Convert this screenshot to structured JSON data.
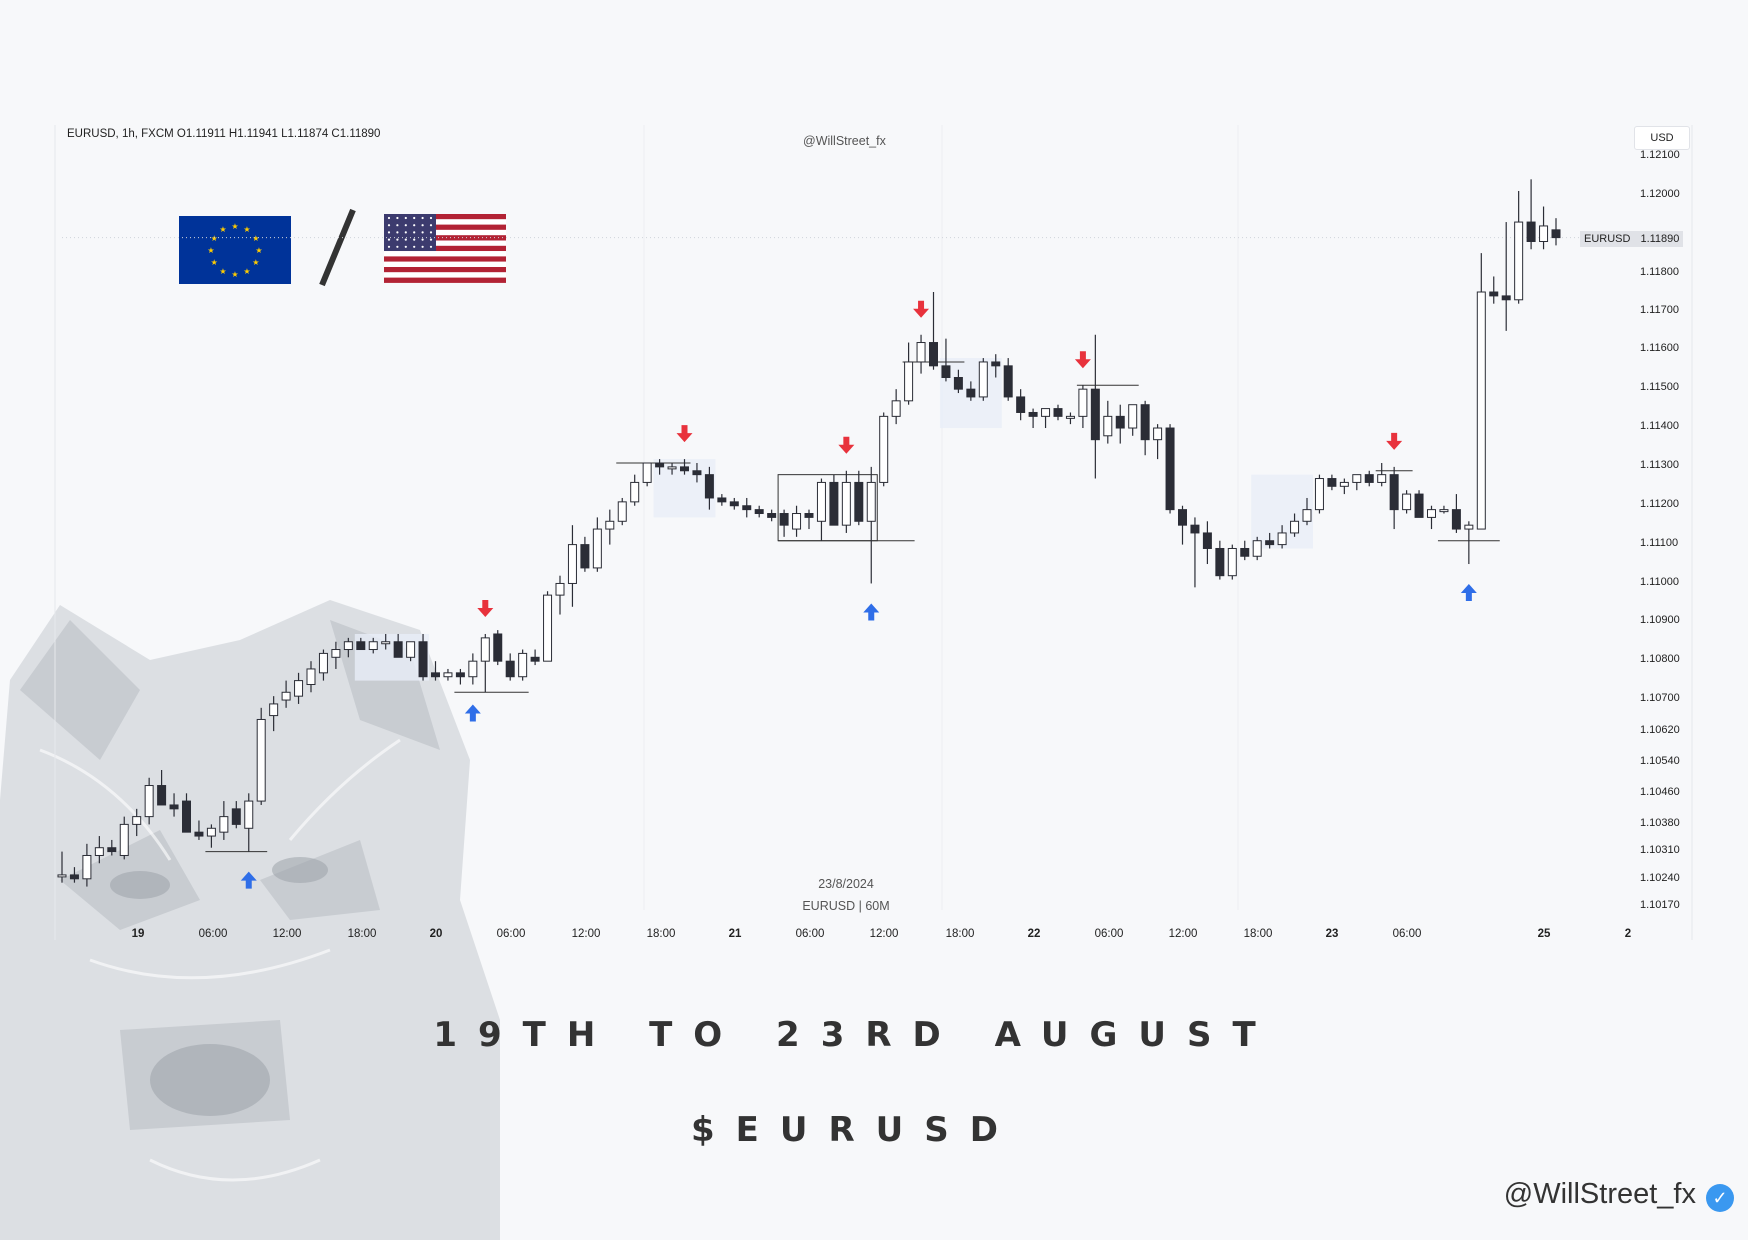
{
  "header": {
    "ohlc_line": "EURUSD, 1h, FXCM  O1.11911  H1.11941  L1.11874  C1.11890",
    "watermark": "@WillStreet_fx",
    "currency": "USD"
  },
  "flags": [
    "eu-flag-icon",
    "us-flag-icon"
  ],
  "price_badge": {
    "symbol": "EURUSD",
    "price": "1.11890"
  },
  "date_note": {
    "date": "23/8/2024",
    "info": "EURUSD | 60M"
  },
  "titles": {
    "main": "19TH TO 23RD AUGUST",
    "sub": "$EURUSD"
  },
  "footer": {
    "handle": "@WillStreet_fx"
  },
  "colors": {
    "bull_body": "#ffffff",
    "bear_body": "#2b2d36",
    "candle_outline": "#2b2d36",
    "sell_arrow": "#e8323c",
    "buy_arrow": "#2f6ee8",
    "zone": "#e8eef7"
  },
  "chart_data": {
    "type": "candlestick",
    "symbol": "EURUSD",
    "timeframe": "1h",
    "y_axis": {
      "ticks": [
        "1.12100",
        "1.12000",
        "1.11800",
        "1.11700",
        "1.11600",
        "1.11500",
        "1.11400",
        "1.11300",
        "1.11200",
        "1.11100",
        "1.11000",
        "1.10900",
        "1.10800",
        "1.10700",
        "1.10620",
        "1.10540",
        "1.10460",
        "1.10380",
        "1.10310",
        "1.10240",
        "1.10170"
      ]
    },
    "x_axis": {
      "ticks": [
        "19",
        "06:00",
        "12:00",
        "18:00",
        "20",
        "06:00",
        "12:00",
        "18:00",
        "21",
        "06:00",
        "12:00",
        "18:00",
        "22",
        "06:00",
        "12:00",
        "18:00",
        "23",
        "06:00",
        "25",
        "2"
      ]
    },
    "candles": [
      {
        "o": 1.1025,
        "h": 1.1031,
        "l": 1.1023,
        "c": 1.1025
      },
      {
        "o": 1.1025,
        "h": 1.1027,
        "l": 1.1023,
        "c": 1.1024
      },
      {
        "o": 1.1024,
        "h": 1.1033,
        "l": 1.1022,
        "c": 1.103
      },
      {
        "o": 1.103,
        "h": 1.1035,
        "l": 1.1028,
        "c": 1.1032
      },
      {
        "o": 1.1032,
        "h": 1.1034,
        "l": 1.103,
        "c": 1.1031
      },
      {
        "o": 1.103,
        "h": 1.104,
        "l": 1.1029,
        "c": 1.1038
      },
      {
        "o": 1.1038,
        "h": 1.1042,
        "l": 1.1035,
        "c": 1.104
      },
      {
        "o": 1.104,
        "h": 1.105,
        "l": 1.1038,
        "c": 1.1048
      },
      {
        "o": 1.1048,
        "h": 1.1052,
        "l": 1.1043,
        "c": 1.1043
      },
      {
        "o": 1.1043,
        "h": 1.1046,
        "l": 1.104,
        "c": 1.1042
      },
      {
        "o": 1.1044,
        "h": 1.1046,
        "l": 1.1036,
        "c": 1.1036
      },
      {
        "o": 1.1036,
        "h": 1.1039,
        "l": 1.1034,
        "c": 1.1035
      },
      {
        "o": 1.1035,
        "h": 1.1038,
        "l": 1.1032,
        "c": 1.1037
      },
      {
        "o": 1.1036,
        "h": 1.1044,
        "l": 1.1034,
        "c": 1.104
      },
      {
        "o": 1.1042,
        "h": 1.1044,
        "l": 1.1037,
        "c": 1.1038
      },
      {
        "o": 1.1037,
        "h": 1.1046,
        "l": 1.1031,
        "c": 1.1044
      },
      {
        "o": 1.1044,
        "h": 1.1068,
        "l": 1.1043,
        "c": 1.1065
      },
      {
        "o": 1.1066,
        "h": 1.1071,
        "l": 1.1062,
        "c": 1.1069
      },
      {
        "o": 1.107,
        "h": 1.1075,
        "l": 1.1068,
        "c": 1.1072
      },
      {
        "o": 1.1071,
        "h": 1.1077,
        "l": 1.1069,
        "c": 1.1075
      },
      {
        "o": 1.1074,
        "h": 1.108,
        "l": 1.1072,
        "c": 1.1078
      },
      {
        "o": 1.1077,
        "h": 1.1083,
        "l": 1.1075,
        "c": 1.1082
      },
      {
        "o": 1.1081,
        "h": 1.1085,
        "l": 1.1078,
        "c": 1.1083
      },
      {
        "o": 1.1083,
        "h": 1.1086,
        "l": 1.1081,
        "c": 1.1085
      },
      {
        "o": 1.1085,
        "h": 1.1086,
        "l": 1.1083,
        "c": 1.1083
      },
      {
        "o": 1.1083,
        "h": 1.1086,
        "l": 1.1082,
        "c": 1.1085
      },
      {
        "o": 1.1085,
        "h": 1.1087,
        "l": 1.1083,
        "c": 1.1085
      },
      {
        "o": 1.1085,
        "h": 1.1087,
        "l": 1.1081,
        "c": 1.1081
      },
      {
        "o": 1.1081,
        "h": 1.1085,
        "l": 1.108,
        "c": 1.1085
      },
      {
        "o": 1.1085,
        "h": 1.1087,
        "l": 1.1075,
        "c": 1.1076
      },
      {
        "o": 1.1077,
        "h": 1.108,
        "l": 1.1075,
        "c": 1.1076
      },
      {
        "o": 1.1076,
        "h": 1.1078,
        "l": 1.1075,
        "c": 1.1077
      },
      {
        "o": 1.1077,
        "h": 1.1078,
        "l": 1.1074,
        "c": 1.1076
      },
      {
        "o": 1.1076,
        "h": 1.1082,
        "l": 1.1074,
        "c": 1.108
      },
      {
        "o": 1.108,
        "h": 1.1087,
        "l": 1.1072,
        "c": 1.1086
      },
      {
        "o": 1.1087,
        "h": 1.1088,
        "l": 1.1079,
        "c": 1.108
      },
      {
        "o": 1.108,
        "h": 1.1082,
        "l": 1.1075,
        "c": 1.1076
      },
      {
        "o": 1.1076,
        "h": 1.1083,
        "l": 1.1075,
        "c": 1.1082
      },
      {
        "o": 1.1081,
        "h": 1.1083,
        "l": 1.1079,
        "c": 1.108
      },
      {
        "o": 1.108,
        "h": 1.1098,
        "l": 1.108,
        "c": 1.1097
      },
      {
        "o": 1.1097,
        "h": 1.1102,
        "l": 1.1092,
        "c": 1.11
      },
      {
        "o": 1.11,
        "h": 1.1115,
        "l": 1.1094,
        "c": 1.111
      },
      {
        "o": 1.111,
        "h": 1.1112,
        "l": 1.1103,
        "c": 1.1104
      },
      {
        "o": 1.1104,
        "h": 1.1117,
        "l": 1.1103,
        "c": 1.1114
      },
      {
        "o": 1.1114,
        "h": 1.1119,
        "l": 1.111,
        "c": 1.1116
      },
      {
        "o": 1.1116,
        "h": 1.1122,
        "l": 1.1115,
        "c": 1.1121
      },
      {
        "o": 1.1121,
        "h": 1.1128,
        "l": 1.112,
        "c": 1.1126
      },
      {
        "o": 1.1126,
        "h": 1.1131,
        "l": 1.1125,
        "c": 1.1131
      },
      {
        "o": 1.1131,
        "h": 1.1132,
        "l": 1.1128,
        "c": 1.113
      },
      {
        "o": 1.113,
        "h": 1.1131,
        "l": 1.1128,
        "c": 1.113
      },
      {
        "o": 1.113,
        "h": 1.1132,
        "l": 1.1128,
        "c": 1.1129
      },
      {
        "o": 1.1129,
        "h": 1.1131,
        "l": 1.1126,
        "c": 1.1128
      },
      {
        "o": 1.1128,
        "h": 1.113,
        "l": 1.1119,
        "c": 1.1122
      },
      {
        "o": 1.1122,
        "h": 1.1123,
        "l": 1.112,
        "c": 1.1121
      },
      {
        "o": 1.1121,
        "h": 1.1122,
        "l": 1.1119,
        "c": 1.112
      },
      {
        "o": 1.112,
        "h": 1.1122,
        "l": 1.1117,
        "c": 1.1119
      },
      {
        "o": 1.1119,
        "h": 1.112,
        "l": 1.1117,
        "c": 1.1118
      },
      {
        "o": 1.1118,
        "h": 1.1119,
        "l": 1.1116,
        "c": 1.1117
      },
      {
        "o": 1.1118,
        "h": 1.1119,
        "l": 1.1112,
        "c": 1.1115
      },
      {
        "o": 1.1114,
        "h": 1.112,
        "l": 1.1112,
        "c": 1.1118
      },
      {
        "o": 1.1118,
        "h": 1.1119,
        "l": 1.1114,
        "c": 1.1117
      },
      {
        "o": 1.1116,
        "h": 1.1127,
        "l": 1.1111,
        "c": 1.1126
      },
      {
        "o": 1.1126,
        "h": 1.1128,
        "l": 1.1115,
        "c": 1.1115
      },
      {
        "o": 1.1115,
        "h": 1.1129,
        "l": 1.1113,
        "c": 1.1126
      },
      {
        "o": 1.1126,
        "h": 1.1129,
        "l": 1.1115,
        "c": 1.1116
      },
      {
        "o": 1.1116,
        "h": 1.113,
        "l": 1.11,
        "c": 1.1126
      },
      {
        "o": 1.1126,
        "h": 1.1144,
        "l": 1.1125,
        "c": 1.1143
      },
      {
        "o": 1.1143,
        "h": 1.115,
        "l": 1.1141,
        "c": 1.1147
      },
      {
        "o": 1.1147,
        "h": 1.1162,
        "l": 1.1146,
        "c": 1.1157
      },
      {
        "o": 1.1157,
        "h": 1.1164,
        "l": 1.1154,
        "c": 1.1162
      },
      {
        "o": 1.1162,
        "h": 1.1175,
        "l": 1.1155,
        "c": 1.1156
      },
      {
        "o": 1.1156,
        "h": 1.1163,
        "l": 1.1152,
        "c": 1.1153
      },
      {
        "o": 1.1153,
        "h": 1.1155,
        "l": 1.1149,
        "c": 1.115
      },
      {
        "o": 1.115,
        "h": 1.1152,
        "l": 1.1147,
        "c": 1.1148
      },
      {
        "o": 1.1148,
        "h": 1.1158,
        "l": 1.1147,
        "c": 1.1157
      },
      {
        "o": 1.1157,
        "h": 1.1159,
        "l": 1.1153,
        "c": 1.1156
      },
      {
        "o": 1.1156,
        "h": 1.1158,
        "l": 1.1147,
        "c": 1.1148
      },
      {
        "o": 1.1148,
        "h": 1.115,
        "l": 1.1142,
        "c": 1.1144
      },
      {
        "o": 1.1144,
        "h": 1.1145,
        "l": 1.114,
        "c": 1.1143
      },
      {
        "o": 1.1143,
        "h": 1.1145,
        "l": 1.114,
        "c": 1.1145
      },
      {
        "o": 1.1145,
        "h": 1.1146,
        "l": 1.1142,
        "c": 1.1143
      },
      {
        "o": 1.1143,
        "h": 1.1144,
        "l": 1.1141,
        "c": 1.1143
      },
      {
        "o": 1.1143,
        "h": 1.1151,
        "l": 1.114,
        "c": 1.115
      },
      {
        "o": 1.115,
        "h": 1.1164,
        "l": 1.1127,
        "c": 1.1137
      },
      {
        "o": 1.1138,
        "h": 1.1147,
        "l": 1.1136,
        "c": 1.1143
      },
      {
        "o": 1.1143,
        "h": 1.1146,
        "l": 1.1136,
        "c": 1.114
      },
      {
        "o": 1.114,
        "h": 1.1146,
        "l": 1.1138,
        "c": 1.1146
      },
      {
        "o": 1.1146,
        "h": 1.1147,
        "l": 1.1133,
        "c": 1.1137
      },
      {
        "o": 1.1137,
        "h": 1.1141,
        "l": 1.1132,
        "c": 1.114
      },
      {
        "o": 1.114,
        "h": 1.1141,
        "l": 1.1118,
        "c": 1.1119
      },
      {
        "o": 1.1119,
        "h": 1.112,
        "l": 1.111,
        "c": 1.1115
      },
      {
        "o": 1.1115,
        "h": 1.1117,
        "l": 1.1099,
        "c": 1.1113
      },
      {
        "o": 1.1113,
        "h": 1.1116,
        "l": 1.1105,
        "c": 1.1109
      },
      {
        "o": 1.1109,
        "h": 1.1111,
        "l": 1.1101,
        "c": 1.1102
      },
      {
        "o": 1.1102,
        "h": 1.111,
        "l": 1.1101,
        "c": 1.1109
      },
      {
        "o": 1.1109,
        "h": 1.1111,
        "l": 1.1106,
        "c": 1.1107
      },
      {
        "o": 1.1107,
        "h": 1.1112,
        "l": 1.1106,
        "c": 1.1111
      },
      {
        "o": 1.1111,
        "h": 1.1113,
        "l": 1.1109,
        "c": 1.111
      },
      {
        "o": 1.111,
        "h": 1.1115,
        "l": 1.1109,
        "c": 1.1113
      },
      {
        "o": 1.1113,
        "h": 1.1118,
        "l": 1.1112,
        "c": 1.1116
      },
      {
        "o": 1.1116,
        "h": 1.1122,
        "l": 1.1115,
        "c": 1.1119
      },
      {
        "o": 1.1119,
        "h": 1.1128,
        "l": 1.1118,
        "c": 1.1127
      },
      {
        "o": 1.1127,
        "h": 1.1128,
        "l": 1.1124,
        "c": 1.1125
      },
      {
        "o": 1.1125,
        "h": 1.1127,
        "l": 1.1123,
        "c": 1.1126
      },
      {
        "o": 1.1126,
        "h": 1.1128,
        "l": 1.1124,
        "c": 1.1128
      },
      {
        "o": 1.1128,
        "h": 1.1129,
        "l": 1.1125,
        "c": 1.1126
      },
      {
        "o": 1.1126,
        "h": 1.1131,
        "l": 1.1125,
        "c": 1.1128
      },
      {
        "o": 1.1128,
        "h": 1.113,
        "l": 1.1114,
        "c": 1.1119
      },
      {
        "o": 1.1119,
        "h": 1.1124,
        "l": 1.1118,
        "c": 1.1123
      },
      {
        "o": 1.1123,
        "h": 1.1124,
        "l": 1.1117,
        "c": 1.1117
      },
      {
        "o": 1.1117,
        "h": 1.112,
        "l": 1.1114,
        "c": 1.1119
      },
      {
        "o": 1.1119,
        "h": 1.112,
        "l": 1.1118,
        "c": 1.1119
      },
      {
        "o": 1.1119,
        "h": 1.1123,
        "l": 1.1113,
        "c": 1.1114
      },
      {
        "o": 1.1114,
        "h": 1.1116,
        "l": 1.1105,
        "c": 1.1115
      },
      {
        "o": 1.1114,
        "h": 1.1185,
        "l": 1.1114,
        "c": 1.1175
      },
      {
        "o": 1.1175,
        "h": 1.1179,
        "l": 1.1172,
        "c": 1.1174
      },
      {
        "o": 1.1174,
        "h": 1.1193,
        "l": 1.1165,
        "c": 1.1173
      },
      {
        "o": 1.1173,
        "h": 1.1201,
        "l": 1.1172,
        "c": 1.1193
      },
      {
        "o": 1.1193,
        "h": 1.1204,
        "l": 1.1186,
        "c": 1.1188
      },
      {
        "o": 1.1188,
        "h": 1.1197,
        "l": 1.1186,
        "c": 1.1192
      },
      {
        "o": 1.1191,
        "h": 1.1194,
        "l": 1.1187,
        "c": 1.1189
      }
    ],
    "signals": [
      {
        "type": "buy",
        "candle": 15
      },
      {
        "type": "sell",
        "candle": 34
      },
      {
        "type": "buy",
        "candle": 33
      },
      {
        "type": "sell",
        "candle": 50
      },
      {
        "type": "sell",
        "candle": 63
      },
      {
        "type": "buy",
        "candle": 65
      },
      {
        "type": "sell",
        "candle": 69
      },
      {
        "type": "sell",
        "candle": 82
      },
      {
        "type": "sell",
        "candle": 107
      },
      {
        "type": "buy",
        "candle": 113
      }
    ],
    "zones": [
      {
        "from": 24,
        "to": 29,
        "top": 1.1087,
        "bottom": 1.1075
      },
      {
        "from": 48,
        "to": 52,
        "top": 1.1132,
        "bottom": 1.1117
      },
      {
        "from": 71,
        "to": 75,
        "top": 1.1158,
        "bottom": 1.114
      },
      {
        "from": 96,
        "to": 100,
        "top": 1.1128,
        "bottom": 1.1109
      }
    ],
    "boxes": [
      {
        "from": 58,
        "to": 65,
        "top": 1.1128,
        "bottom": 1.1111
      }
    ],
    "levels": [
      {
        "from": 12,
        "to": 16,
        "price": 1.1031
      },
      {
        "from": 32,
        "to": 37,
        "price": 1.1072
      },
      {
        "from": 45,
        "to": 50,
        "price": 1.1131
      },
      {
        "from": 58,
        "to": 68,
        "price": 1.1111
      },
      {
        "from": 68,
        "to": 72,
        "price": 1.1157
      },
      {
        "from": 82,
        "to": 86,
        "price": 1.1151
      },
      {
        "from": 106,
        "to": 108,
        "price": 1.1129
      },
      {
        "from": 111,
        "to": 115,
        "price": 1.1111
      }
    ],
    "current_price": 1.1189
  }
}
